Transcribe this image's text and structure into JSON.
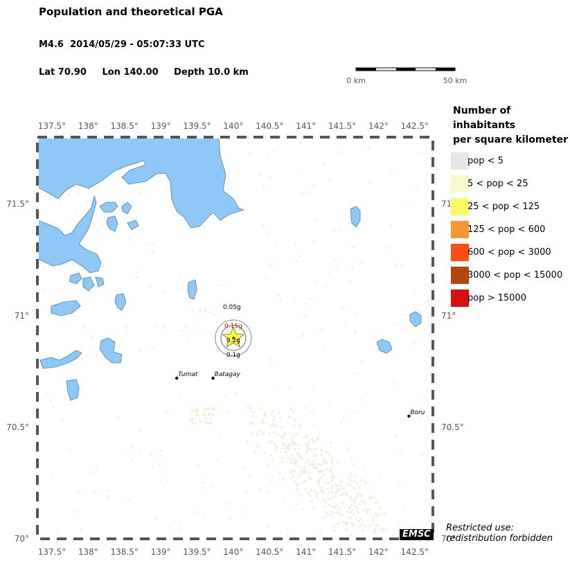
{
  "title": "Population and theoretical PGA",
  "event": {
    "magnitude_label": "M4.6",
    "datetime": "2014/05/29 - 05:07:33 UTC",
    "lat_label": "Lat 70.90",
    "lon_label": "Lon 140.00",
    "depth_label": "Depth  10.0 km"
  },
  "scale_bar": {
    "start_label": "0 km",
    "end_label": "50 km"
  },
  "map": {
    "lon_range": [
      137.3,
      142.75
    ],
    "lat_range": [
      70.0,
      71.8
    ],
    "lon_ticks": [
      137.5,
      138,
      138.5,
      139,
      139.5,
      140,
      140.5,
      141,
      141.5,
      142,
      142.5
    ],
    "lon_tick_labels": [
      "137.5°",
      "138°",
      "138.5°",
      "139°",
      "139.5°",
      "140°",
      "140.5°",
      "141°",
      "141.5°",
      "142°",
      "142.5°"
    ],
    "lat_ticks": [
      70.0,
      70.5,
      71.0,
      71.5
    ],
    "lat_tick_labels": [
      "70°",
      "70.5°",
      "71°",
      "71.5°"
    ],
    "epicenter": {
      "lon": 140.0,
      "lat": 70.9
    },
    "pga_contours": [
      {
        "label": "0.05g",
        "lon": 139.98,
        "lat": 71.04
      },
      {
        "label": "0.15g",
        "lon": 140.0,
        "lat": 70.955
      },
      {
        "label": "0.2g",
        "lon": 140.0,
        "lat": 70.89
      },
      {
        "label": "0.1g",
        "lon": 140.0,
        "lat": 70.825
      }
    ],
    "towns": [
      {
        "name": "Tumat",
        "lon": 139.22,
        "lat": 70.72
      },
      {
        "name": "Batagay",
        "lon": 139.72,
        "lat": 70.72
      },
      {
        "name": "Boru",
        "lon": 142.42,
        "lat": 70.55
      }
    ],
    "colors": {
      "water": "#8ec8f6",
      "water_outline": "#4a7fa6",
      "sparse_pop": "#efefd8",
      "epicenter_star": "#ffff33",
      "contour_label": "#cc0000"
    }
  },
  "legend": {
    "title_line1": "Number of inhabitants",
    "title_line2": "per square kilometer",
    "items": [
      {
        "label": "pop < 5",
        "color": "#e5e8e5"
      },
      {
        "label": "5 < pop < 25",
        "color": "#fafac8"
      },
      {
        "label": "25 < pop < 125",
        "color": "#fafa64"
      },
      {
        "label": "125 < pop < 600",
        "color": "#fa9632"
      },
      {
        "label": "600 < pop < 3000",
        "color": "#fa5014"
      },
      {
        "label": "3000 < pop < 15000",
        "color": "#b4460f"
      },
      {
        "label": "pop > 15000",
        "color": "#d70f0f"
      }
    ]
  },
  "footer": {
    "logo_text": "EMSC",
    "restricted_line1": "Restricted use:",
    "restricted_line2": "redistribution forbidden"
  }
}
